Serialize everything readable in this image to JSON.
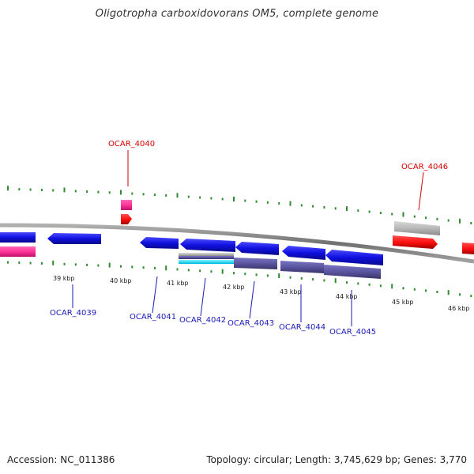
{
  "title": "Oligotropha carboxidovorans OM5, complete genome",
  "footer": {
    "accession": "Accession: NC_011386",
    "summary": "Topology: circular; Length: 3,745,629 bp; Genes: 3,770"
  },
  "colors": {
    "backbone": "#8a8a8a",
    "tick": "#2e8b2e",
    "forward_gene": "#1010e0",
    "reverse_gene": "#ff1010",
    "cds_blue": "#5a55a0",
    "pink": "#ff3399",
    "gray": "#b8b8b8",
    "cyan": "#00e0ff",
    "label_blue": "#1a1ab8",
    "label_red": "#d40000"
  },
  "scale_labels": [
    "39 kbp",
    "40 kbp",
    "41 kbp",
    "42 kbp",
    "43 kbp",
    "44 kbp",
    "45 kbp",
    "46 kbp"
  ],
  "gene_labels": [
    {
      "text": "OCAR_4039",
      "color": "blue"
    },
    {
      "text": "OCAR_4040",
      "color": "red"
    },
    {
      "text": "OCAR_4041",
      "color": "blue"
    },
    {
      "text": "OCAR_4042",
      "color": "blue"
    },
    {
      "text": "OCAR_4043",
      "color": "blue"
    },
    {
      "text": "OCAR_4044",
      "color": "blue"
    },
    {
      "text": "OCAR_4045",
      "color": "blue"
    },
    {
      "text": "OCAR_4046",
      "color": "red"
    }
  ]
}
